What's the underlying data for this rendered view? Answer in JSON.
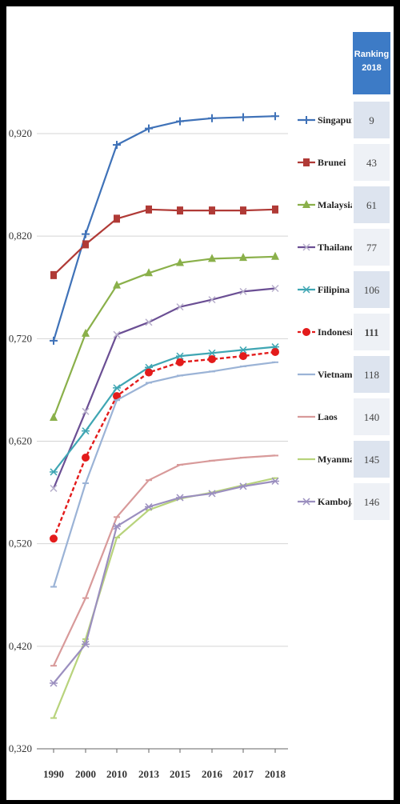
{
  "chart_data": {
    "type": "line",
    "title": "",
    "xlabel": "",
    "ylabel": "",
    "x": [
      "1990",
      "2000",
      "2010",
      "2013",
      "2015",
      "2016",
      "2017",
      "2018"
    ],
    "y_ticks": [
      "0,320",
      "0,420",
      "0,520",
      "0,620",
      "0,720",
      "0,820",
      "0,920"
    ],
    "ylim": [
      0.32,
      0.97
    ],
    "grid": true,
    "legend_position": "right",
    "series": [
      {
        "name": "Singapura",
        "color": "#3f72b8",
        "marker": "plus",
        "rank": "9",
        "values": [
          0.718,
          0.822,
          0.909,
          0.925,
          0.932,
          0.935,
          0.936,
          0.937
        ]
      },
      {
        "name": "Brunei",
        "color": "#b03a36",
        "marker": "square",
        "rank": "43",
        "values": [
          0.782,
          0.812,
          0.837,
          0.846,
          0.845,
          0.845,
          0.845,
          0.846
        ]
      },
      {
        "name": "Malaysia",
        "color": "#8ab04a",
        "marker": "triangle",
        "rank": "61",
        "values": [
          0.643,
          0.725,
          0.772,
          0.784,
          0.794,
          0.798,
          0.799,
          0.8
        ]
      },
      {
        "name": "Thailand",
        "color": "#6b4f94",
        "marker": "x",
        "rank": "77",
        "values": [
          0.574,
          0.649,
          0.724,
          0.736,
          0.751,
          0.758,
          0.766,
          0.769
        ]
      },
      {
        "name": "Filipina",
        "color": "#3fa6b3",
        "marker": "star",
        "rank": "106",
        "values": [
          0.59,
          0.63,
          0.672,
          0.692,
          0.703,
          0.706,
          0.709,
          0.712
        ]
      },
      {
        "name": "Indonesia",
        "color": "#e31b1b",
        "marker": "dot",
        "rank": "111",
        "values": [
          0.525,
          0.604,
          0.664,
          0.687,
          0.697,
          0.7,
          0.703,
          0.707
        ]
      },
      {
        "name": "Vietnam",
        "color": "#9bb3d6",
        "marker": "dash",
        "rank": "118",
        "values": [
          0.478,
          0.579,
          0.66,
          0.677,
          0.684,
          0.688,
          0.693,
          0.697
        ]
      },
      {
        "name": "Laos",
        "color": "#d89a9a",
        "marker": "dash",
        "rank": "140",
        "values": [
          0.401,
          0.467,
          0.546,
          0.582,
          0.597,
          0.601,
          0.604,
          0.606
        ]
      },
      {
        "name": "Myanmar",
        "color": "#b8d37c",
        "marker": "dash",
        "rank": "145",
        "values": [
          0.35,
          0.427,
          0.526,
          0.553,
          0.564,
          0.57,
          0.577,
          0.584
        ]
      },
      {
        "name": "Kamboja",
        "color": "#9b8fbf",
        "marker": "star",
        "rank": "146",
        "values": [
          0.384,
          0.422,
          0.537,
          0.556,
          0.565,
          0.569,
          0.576,
          0.581
        ]
      }
    ],
    "ranking_header": [
      "Ranking",
      "2018"
    ],
    "highlight": {
      "series": "Indonesia",
      "rank_color": "#cc1f1f"
    }
  }
}
